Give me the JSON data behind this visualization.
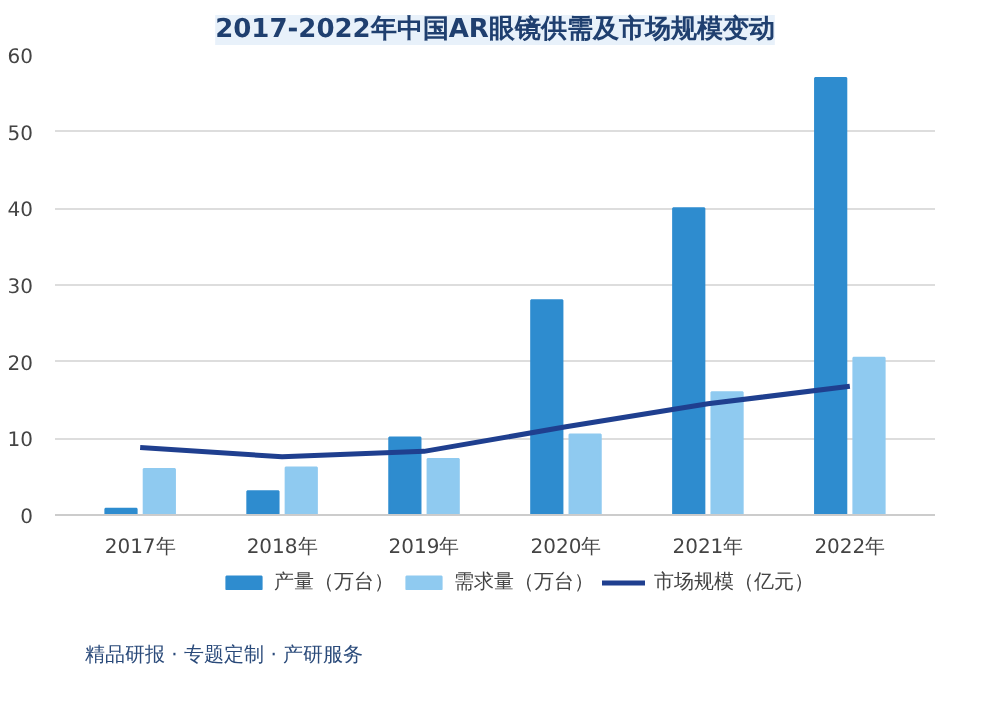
{
  "chart_data": {
    "type": "bar",
    "title": "2017-2022年中国AR眼镜供需及市场规模变动",
    "categories": [
      "2017年",
      "2018年",
      "2019年",
      "2020年",
      "2021年",
      "2022年"
    ],
    "series": [
      {
        "name": "产量（万台）",
        "color": "#2e8ccf",
        "values": [
          0.8,
          3.1,
          10.1,
          28,
          40,
          57
        ]
      },
      {
        "name": "需求量（万台）",
        "color": "#8fcaf0",
        "values": [
          6,
          6.2,
          7.3,
          10.5,
          16,
          20.5
        ]
      },
      {
        "name": "市场规模（亿元）",
        "type": "line",
        "color": "#1f3f8f",
        "values": [
          8.8,
          7.6,
          8.3,
          11.5,
          14.5,
          16.8
        ]
      }
    ],
    "ylim": [
      0,
      60
    ],
    "yticks": [
      0,
      10,
      20,
      30,
      40,
      50,
      60
    ],
    "grid": "y",
    "legend": "bottom",
    "annotations": [
      "精品研报 · 专题定制 · 产研服务"
    ]
  }
}
